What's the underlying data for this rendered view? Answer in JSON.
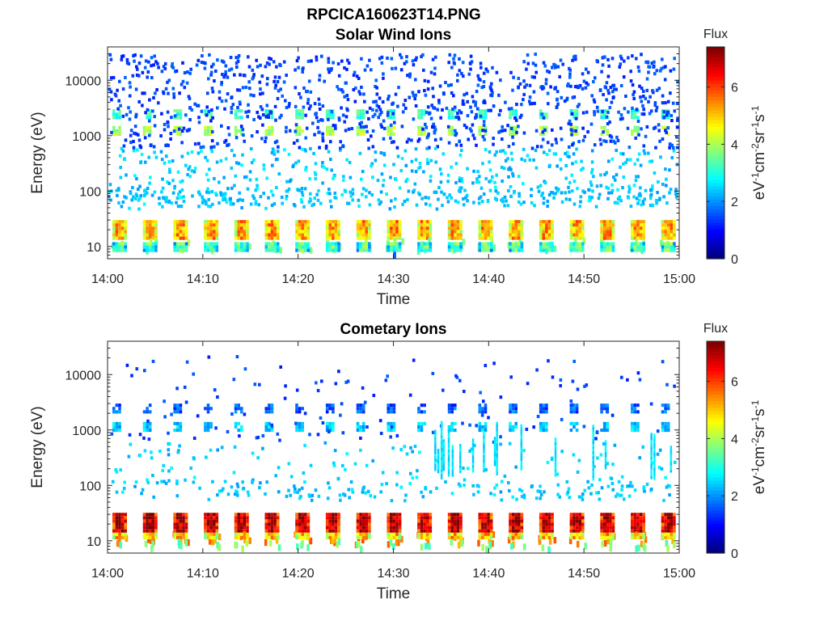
{
  "figure": {
    "title": "RPCICA160623T14.PNG"
  },
  "chart_data": [
    {
      "type": "heatmap",
      "title": "Solar Wind Ions",
      "xlabel": "Time",
      "ylabel": "Energy (eV)",
      "x_ticks": [
        "14:00",
        "14:10",
        "14:20",
        "14:30",
        "14:40",
        "14:50",
        "15:00"
      ],
      "y_ticks": [
        "10",
        "100",
        "1000",
        "10000"
      ],
      "y_scale": "log",
      "ylim": [
        6,
        40000
      ],
      "xlim": [
        "14:00",
        "15:00"
      ],
      "colorbar": {
        "title": "Flux",
        "label": "eV-1cm-2sr-1s-1",
        "ticks": [
          "0",
          "2",
          "4",
          "6"
        ],
        "range": [
          0,
          7.4
        ],
        "colormap": "jet"
      },
      "pattern": {
        "bursts": 19,
        "sweep_period_min": 3.2,
        "bands": [
          {
            "energy_range_eV": [
              1000,
              1500
            ],
            "flux": 4.0
          },
          {
            "energy_range_eV": [
              2000,
              3000
            ],
            "flux": 3.2
          },
          {
            "energy_range_eV": [
              15,
              30
            ],
            "flux": 4.5
          },
          {
            "energy_range_eV": [
              8,
              12
            ],
            "flux": 2.6
          }
        ],
        "background": "sparse single-count noise, blue at high energy, cyan below 500 eV"
      }
    },
    {
      "type": "heatmap",
      "title": "Cometary Ions",
      "xlabel": "Time",
      "ylabel": "Energy (eV)",
      "x_ticks": [
        "14:00",
        "14:10",
        "14:20",
        "14:30",
        "14:40",
        "14:50",
        "15:00"
      ],
      "y_ticks": [
        "10",
        "100",
        "1000",
        "10000"
      ],
      "y_scale": "log",
      "ylim": [
        6,
        40000
      ],
      "xlim": [
        "14:00",
        "15:00"
      ],
      "colorbar": {
        "title": "Flux",
        "label": "eV-1cm-2sr-1s-1",
        "ticks": [
          "0",
          "2",
          "4",
          "6"
        ],
        "range": [
          0,
          7.4
        ],
        "colormap": "jet"
      },
      "pattern": {
        "bursts": 19,
        "sweep_period_min": 3.2,
        "bands": [
          {
            "energy_range_eV": [
              1000,
              1400
            ],
            "flux": 2.4
          },
          {
            "energy_range_eV": [
              2200,
              3000
            ],
            "flux": 1.6
          },
          {
            "energy_range_eV": [
              15,
              32
            ],
            "flux": 6.2
          },
          {
            "energy_range_eV": [
              11,
              14
            ],
            "flux": 4.3
          }
        ],
        "streaks_after": "14:30",
        "background": "sparse noise, blue above 1000 eV, cyan 60-500 eV"
      }
    }
  ]
}
